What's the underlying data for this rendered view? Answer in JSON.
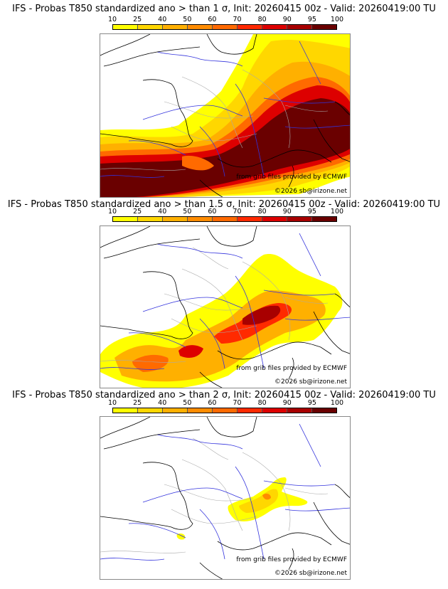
{
  "colorbar": {
    "ticks": [
      "10",
      "25",
      "40",
      "50",
      "60",
      "70",
      "80",
      "90",
      "95",
      "100"
    ],
    "colors": [
      "#ffff00",
      "#ffd700",
      "#ffb000",
      "#ff8c00",
      "#ff6a00",
      "#ff2a00",
      "#dd0000",
      "#a80000",
      "#6a0000"
    ]
  },
  "panels": [
    {
      "title": "IFS - Probas T850  standardized ano > than 1 σ, Init: 20260415 00z - Valid: 20260419:00 TU",
      "credit_source": "from grib files provided by ECMWF",
      "credit_copyright": "©2026 sb@irizone.net"
    },
    {
      "title": "IFS - Probas T850  standardized ano > than 1.5 σ, Init: 20260415 00z - Valid: 20260419:00 TU",
      "credit_source": "from grib files provided by ECMWF",
      "credit_copyright": "©2026 sb@irizone.net"
    },
    {
      "title": "IFS - Probas T850  standardized ano > than 2 σ, Init: 20260415 00z - Valid: 20260419:00 TU",
      "credit_source": "from grib files provided by ECMWF",
      "credit_copyright": "©2026 sb@irizone.net"
    }
  ],
  "map_colors": {
    "coast": "#000000",
    "rivers": "#3333dd",
    "borders": "#aaaaaa"
  }
}
